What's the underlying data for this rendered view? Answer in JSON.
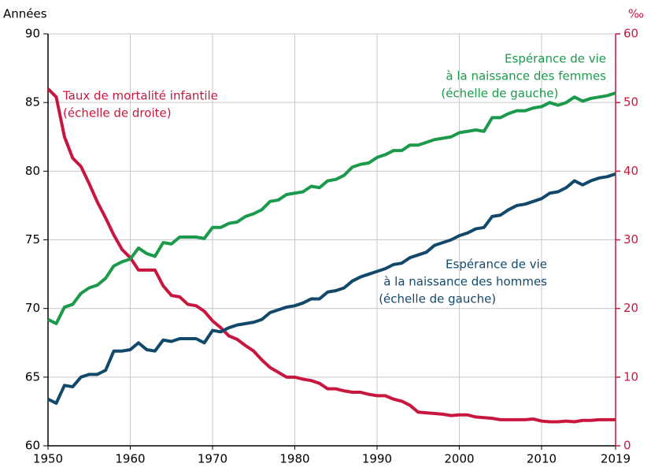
{
  "chart_data": {
    "type": "line",
    "y_label": "Années",
    "y2_label": "‰",
    "x": [
      1950,
      1951,
      1952,
      1953,
      1954,
      1955,
      1956,
      1957,
      1958,
      1959,
      1960,
      1961,
      1962,
      1963,
      1964,
      1965,
      1966,
      1967,
      1968,
      1969,
      1970,
      1971,
      1972,
      1973,
      1974,
      1975,
      1976,
      1977,
      1978,
      1979,
      1980,
      1981,
      1982,
      1983,
      1984,
      1985,
      1986,
      1987,
      1988,
      1989,
      1990,
      1991,
      1992,
      1993,
      1994,
      1995,
      1996,
      1997,
      1998,
      1999,
      2000,
      2001,
      2002,
      2003,
      2004,
      2005,
      2006,
      2007,
      2008,
      2009,
      2010,
      2011,
      2012,
      2013,
      2014,
      2015,
      2016,
      2017,
      2018,
      2019
    ],
    "xlim": [
      1950,
      2019
    ],
    "xticks": [
      1950,
      1960,
      1970,
      1980,
      1990,
      2000,
      2010,
      2019
    ],
    "ylim": [
      60,
      90
    ],
    "yticks": [
      60,
      65,
      70,
      75,
      80,
      85,
      90
    ],
    "y2lim": [
      0,
      60
    ],
    "y2ticks": [
      0,
      10,
      20,
      30,
      40,
      50,
      60
    ],
    "y2_color": "#c8173f",
    "grid": true,
    "series": [
      {
        "color": "#c8173f",
        "axis": "y2",
        "values": [
          52,
          50.8,
          45,
          41.9,
          40.7,
          38.2,
          35.5,
          33.2,
          30.7,
          28.6,
          27.4,
          25.6,
          25.6,
          25.6,
          23.3,
          21.9,
          21.7,
          20.6,
          20.4,
          19.6,
          18.2,
          17.2,
          16.0,
          15.5,
          14.6,
          13.8,
          12.5,
          11.4,
          10.7,
          10.0,
          10.0,
          9.7,
          9.5,
          9.1,
          8.3,
          8.3,
          8.0,
          7.8,
          7.8,
          7.5,
          7.3,
          7.3,
          6.8,
          6.5,
          5.9,
          4.9,
          4.8,
          4.7,
          4.6,
          4.4,
          4.5,
          4.5,
          4.2,
          4.1,
          4.0,
          3.8,
          3.8,
          3.8,
          3.8,
          3.9,
          3.6,
          3.5,
          3.5,
          3.6,
          3.5,
          3.7,
          3.7,
          3.8,
          3.8,
          3.8
        ]
      },
      {
        "color": "#1a9a4a",
        "values": [
          69.2,
          68.9,
          70.1,
          70.3,
          71.1,
          71.5,
          71.7,
          72.2,
          73.1,
          73.4,
          73.6,
          74.4,
          74.0,
          73.8,
          74.8,
          74.7,
          75.2,
          75.2,
          75.2,
          75.1,
          75.9,
          75.9,
          76.2,
          76.3,
          76.7,
          76.9,
          77.2,
          77.8,
          77.9,
          78.3,
          78.4,
          78.5,
          78.9,
          78.8,
          79.3,
          79.4,
          79.7,
          80.3,
          80.5,
          80.6,
          81.0,
          81.2,
          81.5,
          81.5,
          81.9,
          81.9,
          82.1,
          82.3,
          82.4,
          82.5,
          82.8,
          82.9,
          83.0,
          82.9,
          83.9,
          83.9,
          84.2,
          84.4,
          84.4,
          84.6,
          84.7,
          85.0,
          84.8,
          85.0,
          85.4,
          85.1,
          85.3,
          85.4,
          85.5,
          85.7
        ]
      },
      {
        "color": "#12496b",
        "values": [
          63.4,
          63.1,
          64.4,
          64.3,
          65.0,
          65.2,
          65.2,
          65.5,
          66.9,
          66.9,
          67.0,
          67.5,
          67.0,
          66.9,
          67.7,
          67.6,
          67.8,
          67.8,
          67.8,
          67.5,
          68.4,
          68.3,
          68.6,
          68.8,
          68.9,
          69.0,
          69.2,
          69.7,
          69.9,
          70.1,
          70.2,
          70.4,
          70.7,
          70.7,
          71.2,
          71.3,
          71.5,
          72.0,
          72.3,
          72.5,
          72.7,
          72.9,
          73.2,
          73.3,
          73.7,
          73.9,
          74.1,
          74.6,
          74.8,
          75.0,
          75.3,
          75.5,
          75.8,
          75.9,
          76.7,
          76.8,
          77.2,
          77.5,
          77.6,
          77.8,
          78.0,
          78.4,
          78.5,
          78.8,
          79.3,
          79.0,
          79.3,
          79.5,
          79.6,
          79.8
        ]
      }
    ],
    "annotations": [
      {
        "lines": [
          "Taux de mortalité infantile",
          "(échelle de droite)"
        ]
      },
      {
        "lines": [
          "Espérance de vie",
          "à la naissance des femmes",
          "(échelle de gauche)"
        ]
      },
      {
        "lines": [
          "Espérance de vie",
          "à la naissance des hommes",
          "(échelle de gauche)"
        ]
      }
    ]
  }
}
